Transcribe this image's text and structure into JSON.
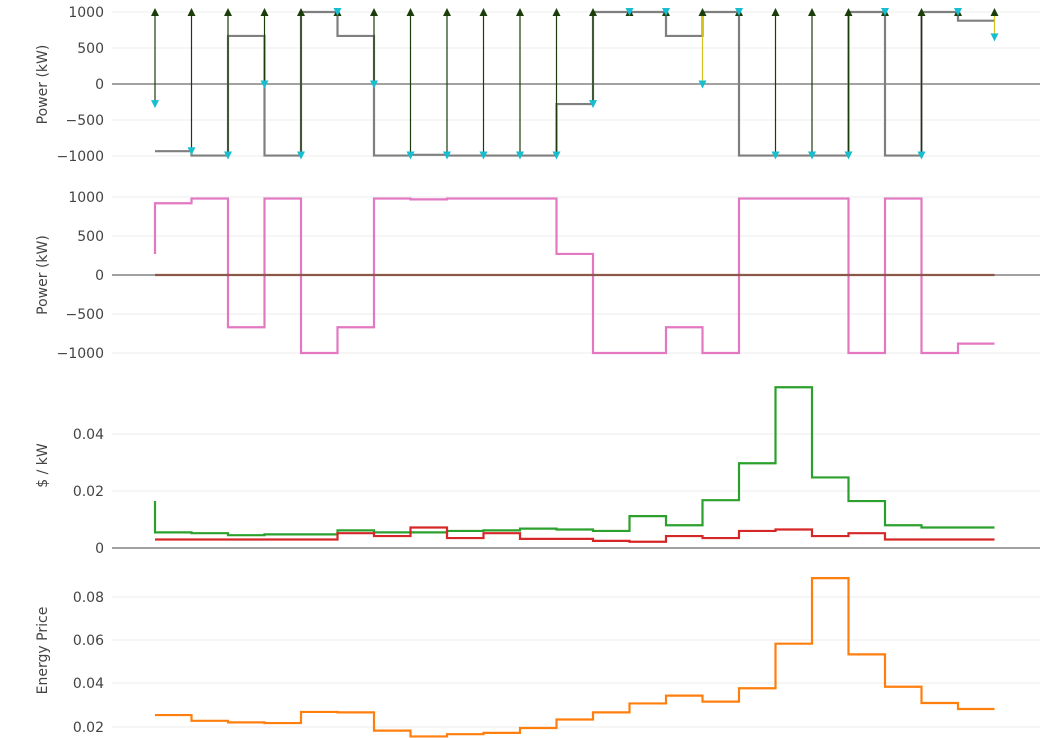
{
  "chart_data": [
    {
      "type": "line",
      "ylabel": "Power (kW)",
      "ylim": [
        -1000,
        1000
      ],
      "yticks": [
        1000,
        500,
        0,
        -500,
        -1000
      ],
      "ytick_labels": [
        "1000",
        "500",
        "0",
        "−500",
        "−1000"
      ],
      "grid": true,
      "series": [
        {
          "color": "#7f7f7f",
          "line_shape": "step",
          "values": [
            -920,
            -980,
            670,
            -980,
            1000,
            670,
            -980,
            -970,
            -980,
            -980,
            -980,
            -270,
            1000,
            1000,
            670,
            1000,
            -980,
            -980,
            -980,
            1000,
            -980,
            1000,
            880
          ]
        }
      ],
      "marker_series": [
        {
          "color": "#1a3d0a",
          "symbol": "triangle-up",
          "values": [
            1000,
            1000,
            1000,
            1000,
            1000,
            1000,
            1000,
            1000,
            1000,
            1000,
            1000,
            1000,
            1000,
            1000,
            1000,
            1000,
            1000,
            1000,
            1000,
            1000,
            1000,
            1000,
            1000,
            1000
          ]
        },
        {
          "color": "#17becf",
          "symbol": "triangle-down",
          "values": [
            -270,
            -920,
            -980,
            0,
            -980,
            1000,
            0,
            -980,
            -980,
            -980,
            -980,
            -980,
            -270,
            1000,
            1000,
            0,
            1000,
            -980,
            -980,
            -980,
            1000,
            -980,
            1000,
            650
          ]
        }
      ],
      "connector_colors": {
        "up": "#1a3d0a",
        "down": "#d4c21a"
      }
    },
    {
      "type": "line",
      "ylabel": "Power (kW)",
      "ylim": [
        -1000,
        1000
      ],
      "yticks": [
        1000,
        500,
        0,
        -500,
        -1000
      ],
      "ytick_labels": [
        "1000",
        "500",
        "0",
        "−500",
        "−1000"
      ],
      "grid": true,
      "series": [
        {
          "color": "#e377c2",
          "line_shape": "step",
          "values": [
            920,
            980,
            -670,
            980,
            -1000,
            -670,
            980,
            970,
            980,
            980,
            980,
            270,
            -1000,
            -1000,
            -670,
            -1000,
            980,
            980,
            980,
            -1000,
            980,
            -1000,
            -880
          ],
          "start_value": 270
        },
        {
          "color": "#8c564b",
          "line_shape": "step",
          "values": [
            0,
            0,
            0,
            0,
            0,
            0,
            0,
            0,
            0,
            0,
            0,
            0,
            0,
            0,
            0,
            0,
            0,
            0,
            0,
            0,
            0,
            0,
            0
          ]
        }
      ]
    },
    {
      "type": "line",
      "ylabel": "$ / kW",
      "ylim": [
        0,
        0.058
      ],
      "yticks": [
        0,
        0.02,
        0.04
      ],
      "ytick_labels": [
        "0",
        "0.02",
        "0.04"
      ],
      "grid": true,
      "series": [
        {
          "color": "#2ca02c",
          "line_shape": "step",
          "values": [
            0.0055,
            0.0052,
            0.0045,
            0.0048,
            0.0048,
            0.0062,
            0.0055,
            0.0055,
            0.006,
            0.0062,
            0.0068,
            0.0065,
            0.006,
            0.0112,
            0.008,
            0.0168,
            0.0298,
            0.0565,
            0.0248,
            0.0165,
            0.008,
            0.0072,
            0.0072
          ],
          "start_value": 0.0165
        },
        {
          "color": "#d62728",
          "line_shape": "step",
          "values": [
            0.003,
            0.003,
            0.003,
            0.003,
            0.003,
            0.0052,
            0.0042,
            0.0072,
            0.0035,
            0.0052,
            0.0032,
            0.0032,
            0.0025,
            0.0022,
            0.0042,
            0.0035,
            0.006,
            0.0065,
            0.0042,
            0.0052,
            0.003,
            0.003,
            0.003
          ]
        }
      ]
    },
    {
      "type": "line",
      "ylabel": "Energy Price",
      "ylim": [
        0.0165,
        0.095
      ],
      "yticks": [
        0.02,
        0.04,
        0.06,
        0.08
      ],
      "ytick_labels": [
        "0.02",
        "0.04",
        "0.06",
        "0.08"
      ],
      "grid": true,
      "series": [
        {
          "color": "#ff7f0e",
          "line_shape": "step",
          "values": [
            0.0268,
            0.0242,
            0.0235,
            0.0232,
            0.0282,
            0.028,
            0.0198,
            0.0172,
            0.0182,
            0.0188,
            0.021,
            0.0248,
            0.028,
            0.032,
            0.0355,
            0.0328,
            0.0388,
            0.0588,
            0.0882,
            0.054,
            0.0395,
            0.0322,
            0.0295
          ]
        }
      ]
    }
  ]
}
